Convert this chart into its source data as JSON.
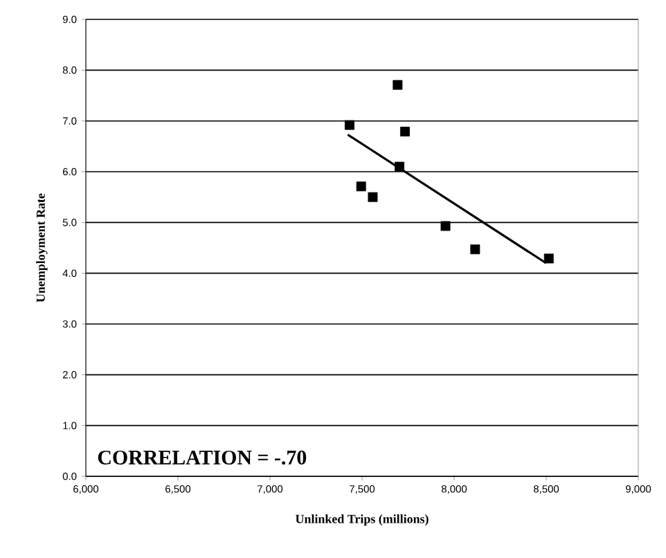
{
  "chart_data": {
    "type": "scatter",
    "xlabel": "Unlinked Trips (millions)",
    "ylabel": "Unemployment Rate",
    "annotations": [
      "CORRELATION = -.70"
    ],
    "xlim": [
      6000,
      9000
    ],
    "ylim": [
      0,
      9
    ],
    "xticks": [
      {
        "value": 6000,
        "label": "6,000"
      },
      {
        "value": 6500,
        "label": "6,500"
      },
      {
        "value": 7000,
        "label": "7,000"
      },
      {
        "value": 7500,
        "label": "7,500"
      },
      {
        "value": 8000,
        "label": "8,000"
      },
      {
        "value": 8500,
        "label": "8,500"
      },
      {
        "value": 9000,
        "label": "9,000"
      }
    ],
    "yticks": [
      {
        "value": 0,
        "label": "0.0"
      },
      {
        "value": 1,
        "label": "1.0"
      },
      {
        "value": 2,
        "label": "2.0"
      },
      {
        "value": 3,
        "label": "3.0"
      },
      {
        "value": 4,
        "label": "4.0"
      },
      {
        "value": 5,
        "label": "5.0"
      },
      {
        "value": 6,
        "label": "6.0"
      },
      {
        "value": 7,
        "label": "7.0"
      },
      {
        "value": 8,
        "label": "8.0"
      },
      {
        "value": 9,
        "label": "9.0"
      }
    ],
    "grid": "y",
    "marker": "square",
    "series": [
      {
        "color": "#000000",
        "x": [
          7432,
          7693,
          7733,
          7703,
          7495,
          7558,
          7953,
          8114,
          8514
        ],
        "values": [
          6.92,
          7.71,
          6.79,
          6.1,
          5.71,
          5.5,
          4.93,
          4.47,
          4.29
        ]
      },
      {
        "type": "line",
        "marker": "none",
        "color": "#000000",
        "x": [
          7422,
          8499
        ],
        "values": [
          6.73,
          4.2
        ]
      }
    ]
  }
}
